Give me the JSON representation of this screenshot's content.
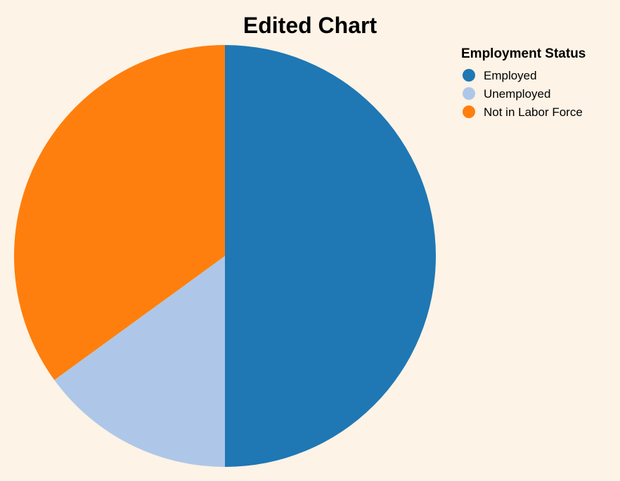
{
  "chart_data": {
    "type": "pie",
    "title": "Edited Chart",
    "legend_title": "Employment Status",
    "legend_position": "top-right",
    "categories": [
      "Employed",
      "Unemployed",
      "Not in Labor Force"
    ],
    "values": [
      50,
      15,
      35
    ],
    "colors": [
      "#1f77b4",
      "#aec7e8",
      "#ff7f0e"
    ],
    "start": "top",
    "direction": "clockwise"
  }
}
